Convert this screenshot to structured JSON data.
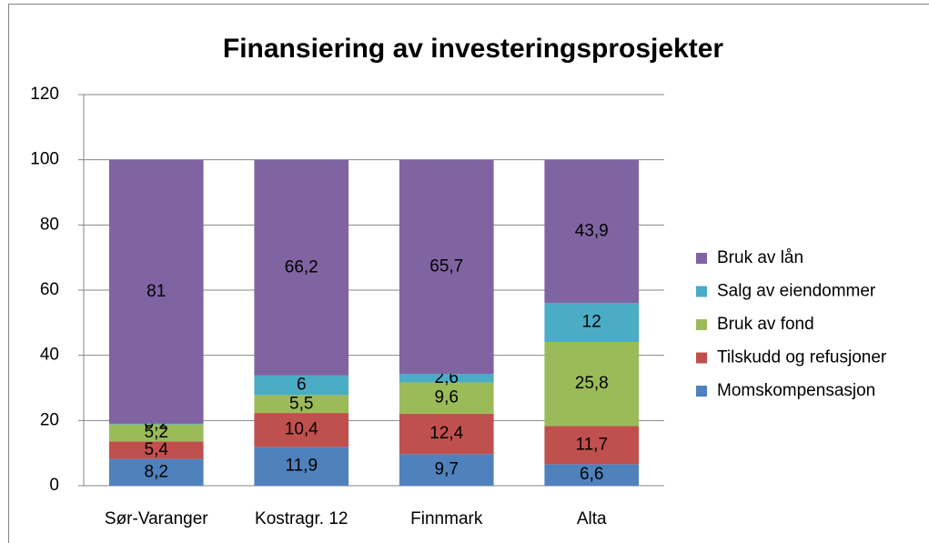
{
  "chart_data": {
    "type": "stacked_bar",
    "title": "Finansiering av investeringsprosjekter",
    "categories": [
      "Sør-Varanger",
      "Kostragr. 12",
      "Finnmark",
      "Alta"
    ],
    "series": [
      {
        "name": "Momskompensasjon",
        "color": "#4f81bd",
        "values": [
          8.2,
          11.9,
          9.7,
          6.6
        ],
        "value_labels": [
          "8,2",
          "11,9",
          "9,7",
          "6,6"
        ]
      },
      {
        "name": "Tilskudd og refusjoner",
        "color": "#c0504d",
        "values": [
          5.4,
          10.4,
          12.4,
          11.7
        ],
        "value_labels": [
          "5,4",
          "10,4",
          "12,4",
          "11,7"
        ]
      },
      {
        "name": "Bruk av fond",
        "color": "#9bbb59",
        "values": [
          5.2,
          5.5,
          9.6,
          25.8
        ],
        "value_labels": [
          "5,2",
          "5,5",
          "9,6",
          "25,8"
        ]
      },
      {
        "name": "Salg av eiendommer",
        "color": "#4bacc6",
        "values": [
          0.2,
          6,
          2.6,
          12
        ],
        "value_labels": [
          "0,2",
          "6",
          "2,6",
          "12"
        ]
      },
      {
        "name": "Bruk av lån",
        "color": "#8064a2",
        "values": [
          81,
          66.2,
          65.7,
          43.9
        ],
        "value_labels": [
          "81",
          "66,2",
          "65,7",
          "43,9"
        ]
      }
    ],
    "ylim": [
      0,
      120
    ],
    "yticks": [
      0,
      20,
      40,
      60,
      80,
      100,
      120
    ],
    "grid": true,
    "legend": "right"
  }
}
